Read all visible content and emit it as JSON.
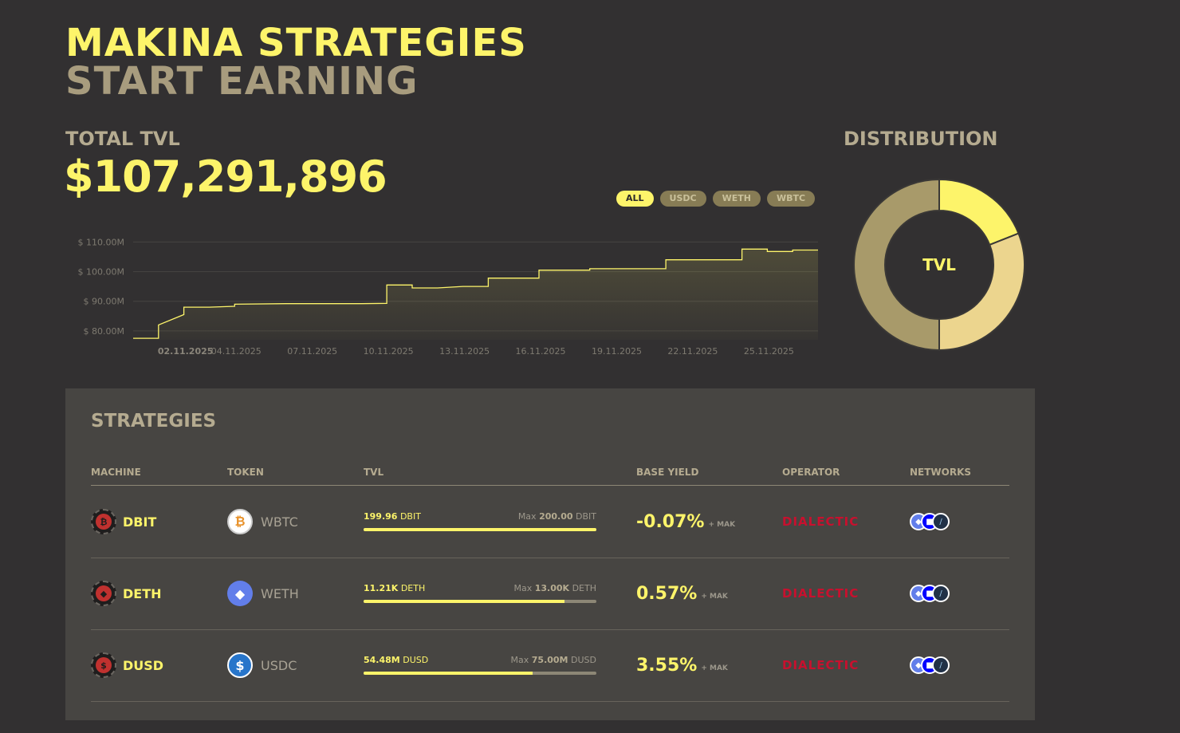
{
  "hero": {
    "line1": "MAKINA STRATEGIES",
    "line2": "START EARNING"
  },
  "tvl": {
    "label": "TOTAL TVL",
    "value": "$107,291,896"
  },
  "filters": [
    {
      "label": "ALL",
      "active": true
    },
    {
      "label": "USDC",
      "active": false
    },
    {
      "label": "WETH",
      "active": false
    },
    {
      "label": "WBTC",
      "active": false
    }
  ],
  "chart_data": {
    "type": "area",
    "y_ticks": [
      "$ 110.00M",
      "$ 100.00M",
      "$ 90.00M",
      "$ 80.00M"
    ],
    "x_ticks": [
      "02.11.2025",
      "04.11.2025",
      "07.11.2025",
      "10.11.2025",
      "13.11.2025",
      "16.11.2025",
      "19.11.2025",
      "22.11.2025",
      "25.11.2025"
    ],
    "ylim": [
      77,
      112
    ],
    "series": [
      {
        "values": [
          [
            "31.10.2025",
            77.5
          ],
          [
            "01.11.2025",
            77.5
          ],
          [
            "01.11.2025",
            82.0
          ],
          [
            "02.11.2025",
            85.5
          ],
          [
            "02.11.2025",
            88.0
          ],
          [
            "03.11.2025",
            88.0
          ],
          [
            "04.11.2025",
            88.3
          ],
          [
            "04.11.2025",
            89.0
          ],
          [
            "06.11.2025",
            89.2
          ],
          [
            "09.11.2025",
            89.2
          ],
          [
            "10.11.2025",
            89.3
          ],
          [
            "10.11.2025",
            95.5
          ],
          [
            "11.11.2025",
            95.5
          ],
          [
            "11.11.2025",
            94.5
          ],
          [
            "12.11.2025",
            94.5
          ],
          [
            "13.11.2025",
            95.0
          ],
          [
            "14.11.2025",
            95.0
          ],
          [
            "14.11.2025",
            97.8
          ],
          [
            "15.11.2025",
            97.8
          ],
          [
            "16.11.2025",
            97.8
          ],
          [
            "16.11.2025",
            100.5
          ],
          [
            "18.11.2025",
            100.5
          ],
          [
            "18.11.2025",
            101.0
          ],
          [
            "21.11.2025",
            101.0
          ],
          [
            "21.11.2025",
            104.0
          ],
          [
            "23.11.2025",
            104.0
          ],
          [
            "24.11.2025",
            104.0
          ],
          [
            "24.11.2025",
            107.6
          ],
          [
            "25.11.2025",
            107.6
          ],
          [
            "25.11.2025",
            106.8
          ],
          [
            "26.11.2025",
            106.8
          ],
          [
            "26.11.2025",
            107.3
          ],
          [
            "27.11.2025",
            107.3
          ]
        ]
      }
    ]
  },
  "distribution": {
    "label": "DISTRIBUTION",
    "center_label": "TVL",
    "slices": [
      {
        "token": "WBTC",
        "fraction": 0.19,
        "color": "#fdf46a"
      },
      {
        "token": "WETH",
        "fraction": 0.31,
        "color": "#ecd58e"
      },
      {
        "token": "USDC",
        "fraction": 0.5,
        "color": "#a89a6a"
      }
    ]
  },
  "strategies": {
    "title": "STRATEGIES",
    "headers": {
      "machine": "MACHINE",
      "token": "TOKEN",
      "tvl": "TVL",
      "base_yield": "BASE YIELD",
      "operator": "OPERATOR",
      "networks": "NETWORKS"
    },
    "rows": [
      {
        "machine": "DBIT",
        "machine_icon": "bitcoin-glyph",
        "token": "WBTC",
        "token_icon": "bitcoin-icon",
        "tvl_value": "199.96",
        "tvl_unit": "DBIT",
        "max_label": "Max",
        "max_value": "200.00",
        "max_unit": "DBIT",
        "fill": 0.9998,
        "yield": "-0.07%",
        "mak": "+ MAK",
        "operator": "DIALECTIC"
      },
      {
        "machine": "DETH",
        "machine_icon": "ethereum-glyph",
        "token": "WETH",
        "token_icon": "ethereum-icon",
        "tvl_value": "11.21K",
        "tvl_unit": "DETH",
        "max_label": "Max",
        "max_value": "13.00K",
        "max_unit": "DETH",
        "fill": 0.862,
        "yield": "0.57%",
        "mak": "+ MAK",
        "operator": "DIALECTIC"
      },
      {
        "machine": "DUSD",
        "machine_icon": "dollar-glyph",
        "token": "USDC",
        "token_icon": "usdc-icon",
        "tvl_value": "54.48M",
        "tvl_unit": "DUSD",
        "max_label": "Max",
        "max_value": "75.00M",
        "max_unit": "DUSD",
        "fill": 0.7264,
        "yield": "3.55%",
        "mak": "+ MAK",
        "operator": "DIALECTIC"
      }
    ]
  }
}
